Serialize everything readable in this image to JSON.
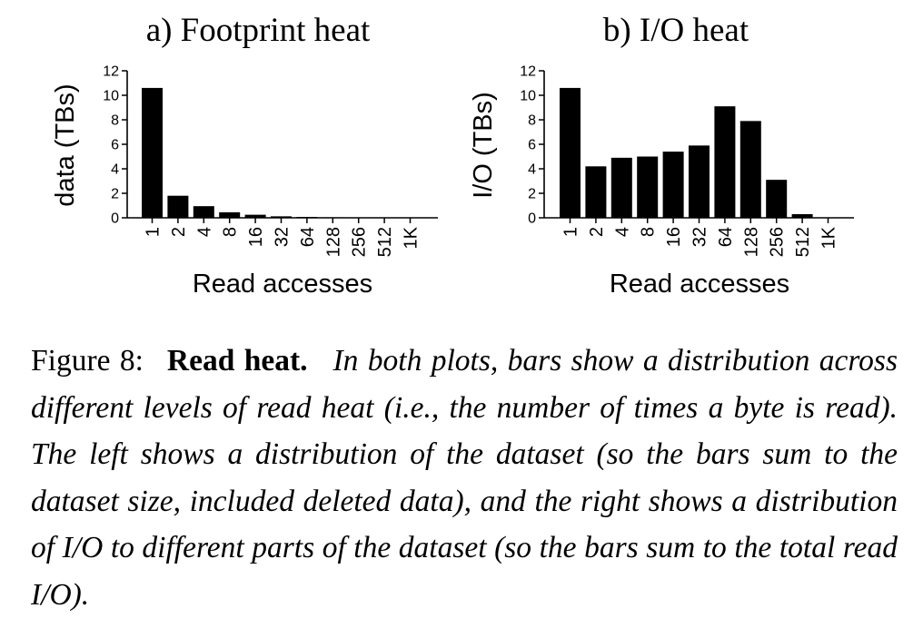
{
  "chart_data": [
    {
      "type": "bar",
      "title": "a) Footprint heat",
      "xlabel": "Read accesses",
      "ylabel": "data (TBs)",
      "categories": [
        "1",
        "2",
        "4",
        "8",
        "16",
        "32",
        "64",
        "128",
        "256",
        "512",
        "1K"
      ],
      "values": [
        10.6,
        1.8,
        0.95,
        0.45,
        0.25,
        0.12,
        0.07,
        0.04,
        0.02,
        0.01,
        0.0
      ],
      "ylim": [
        0,
        12
      ],
      "yticks": [
        "0",
        "2",
        "4",
        "6",
        "8",
        "10",
        "12"
      ],
      "grid": false,
      "legend": "none"
    },
    {
      "type": "bar",
      "title": "b) I/O heat",
      "xlabel": "Read accesses",
      "ylabel": "I/O (TBs)",
      "categories": [
        "1",
        "2",
        "4",
        "8",
        "16",
        "32",
        "64",
        "128",
        "256",
        "512",
        "1K"
      ],
      "values": [
        10.6,
        4.2,
        4.9,
        5.0,
        5.4,
        5.9,
        9.1,
        7.9,
        3.1,
        0.3,
        0.0
      ],
      "ylim": [
        0,
        12
      ],
      "yticks": [
        "0",
        "2",
        "4",
        "6",
        "8",
        "10",
        "12"
      ],
      "grid": false,
      "legend": "none"
    }
  ],
  "caption": {
    "label": "Figure 8:",
    "bold": "Read heat.",
    "text": "In both plots, bars show a distribution across different levels of read heat (i.e., the number of times a byte is read). The left shows a distribution of the dataset (so the bars sum to the dataset size, included deleted data), and the right shows a distribution of I/O to different parts of the dataset (so the bars sum to the total read I/O)."
  },
  "colors": {
    "bar": "#000000",
    "axis": "#000000",
    "background": "#ffffff"
  }
}
